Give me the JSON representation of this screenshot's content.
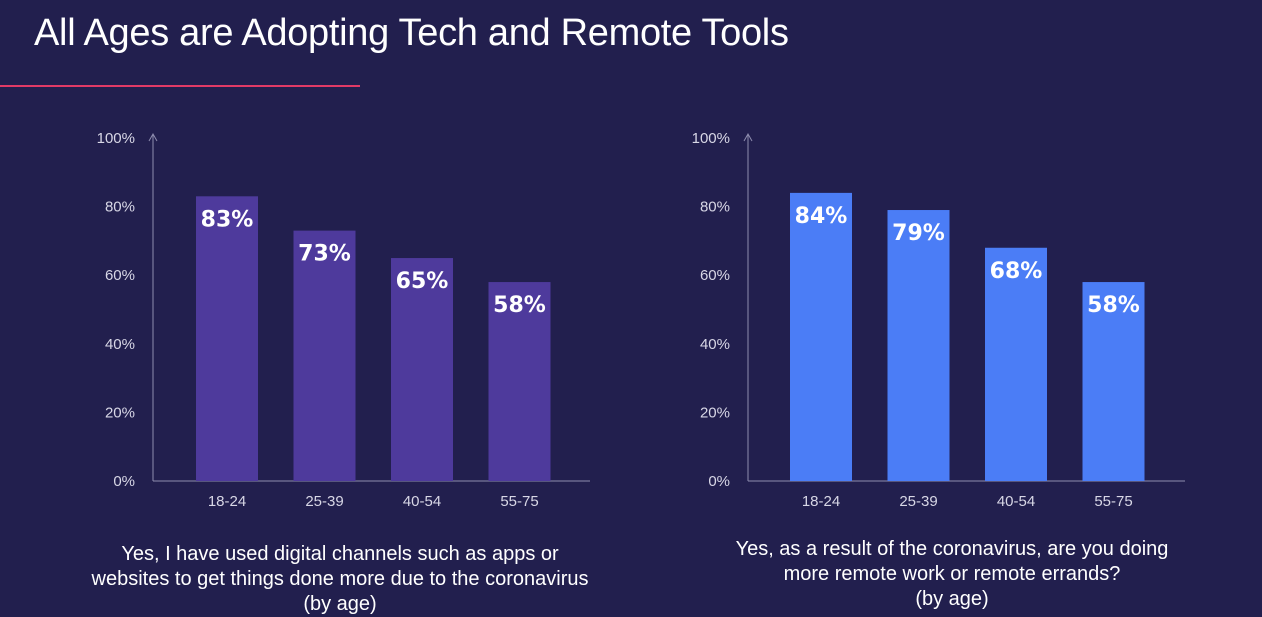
{
  "title": "All Ages are Adopting Tech and Remote Tools",
  "colors": {
    "background": "#221f4e",
    "accent_line": "#e23a66",
    "left_bar": "#4e3a9c",
    "right_bar": "#4b7df6",
    "axis": "#8e8cae"
  },
  "chart_data": [
    {
      "type": "bar",
      "categories": [
        "18-24",
        "25-39",
        "40-54",
        "55-75"
      ],
      "values": [
        83,
        73,
        65,
        58
      ],
      "value_labels": [
        "83%",
        "73%",
        "65%",
        "58%"
      ],
      "y_ticks": [
        "0%",
        "20%",
        "40%",
        "60%",
        "80%",
        "100%"
      ],
      "ylim": [
        0,
        100
      ],
      "caption_lines": [
        "Yes, I have used digital channels such as apps or",
        "websites to get things done more due to the coronavirus",
        "(by age)"
      ],
      "bar_color": "#4e3a9c"
    },
    {
      "type": "bar",
      "categories": [
        "18-24",
        "25-39",
        "40-54",
        "55-75"
      ],
      "values": [
        84,
        79,
        68,
        58
      ],
      "value_labels": [
        "84%",
        "79%",
        "68%",
        "58%"
      ],
      "y_ticks": [
        "0%",
        "20%",
        "40%",
        "60%",
        "80%",
        "100%"
      ],
      "ylim": [
        0,
        100
      ],
      "caption_lines": [
        "Yes, as a result of the coronavirus, are you doing",
        "more remote work or remote errands?",
        "(by age)"
      ],
      "bar_color": "#4b7df6"
    }
  ]
}
